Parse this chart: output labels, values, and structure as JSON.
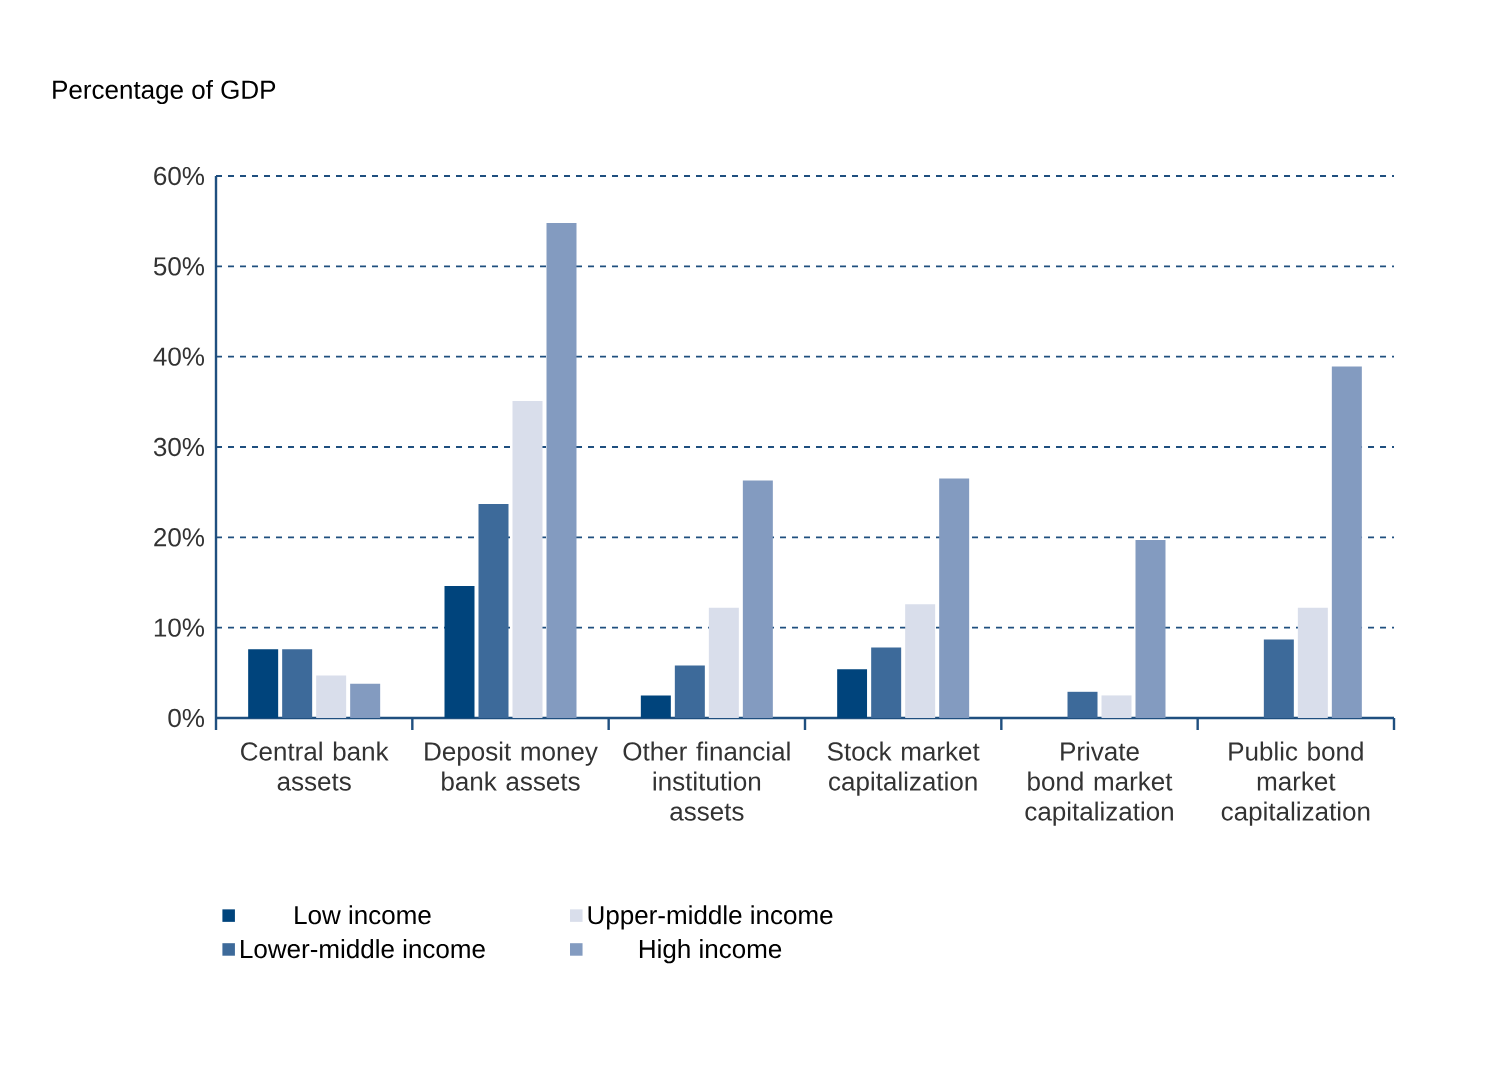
{
  "chart_data": {
    "type": "bar",
    "ylabel": "Percentage of GDP",
    "categories": [
      "Central bank assets",
      "Deposit money bank assets",
      "Other financial institution assets",
      "Stock market capitalization",
      "Private bond market capitalization",
      "Public bond market capitalization"
    ],
    "series": [
      {
        "name": "Low income",
        "color": "#00447c",
        "values": [
          7.6,
          14.6,
          2.5,
          5.4,
          null,
          null
        ]
      },
      {
        "name": "Lower-middle income",
        "color": "#3d6a9a",
        "values": [
          7.6,
          23.7,
          5.8,
          7.8,
          2.9,
          8.7
        ]
      },
      {
        "name": "Upper-middle income",
        "color": "#d9deeb",
        "values": [
          4.7,
          35.1,
          12.2,
          12.6,
          2.5,
          12.2
        ]
      },
      {
        "name": "High income",
        "color": "#839bc0",
        "values": [
          3.8,
          54.8,
          26.3,
          26.5,
          19.7,
          38.9
        ]
      }
    ],
    "ylim": [
      0,
      60
    ],
    "yticks": [
      {
        "value": 0,
        "label": "0%"
      },
      {
        "value": 10,
        "label": "10%"
      },
      {
        "value": 20,
        "label": "20%"
      },
      {
        "value": 30,
        "label": "30%"
      },
      {
        "value": 40,
        "label": "40%"
      },
      {
        "value": 50,
        "label": "50%"
      },
      {
        "value": 60,
        "label": "60%"
      }
    ],
    "grid": "y",
    "legend": "bottom"
  }
}
